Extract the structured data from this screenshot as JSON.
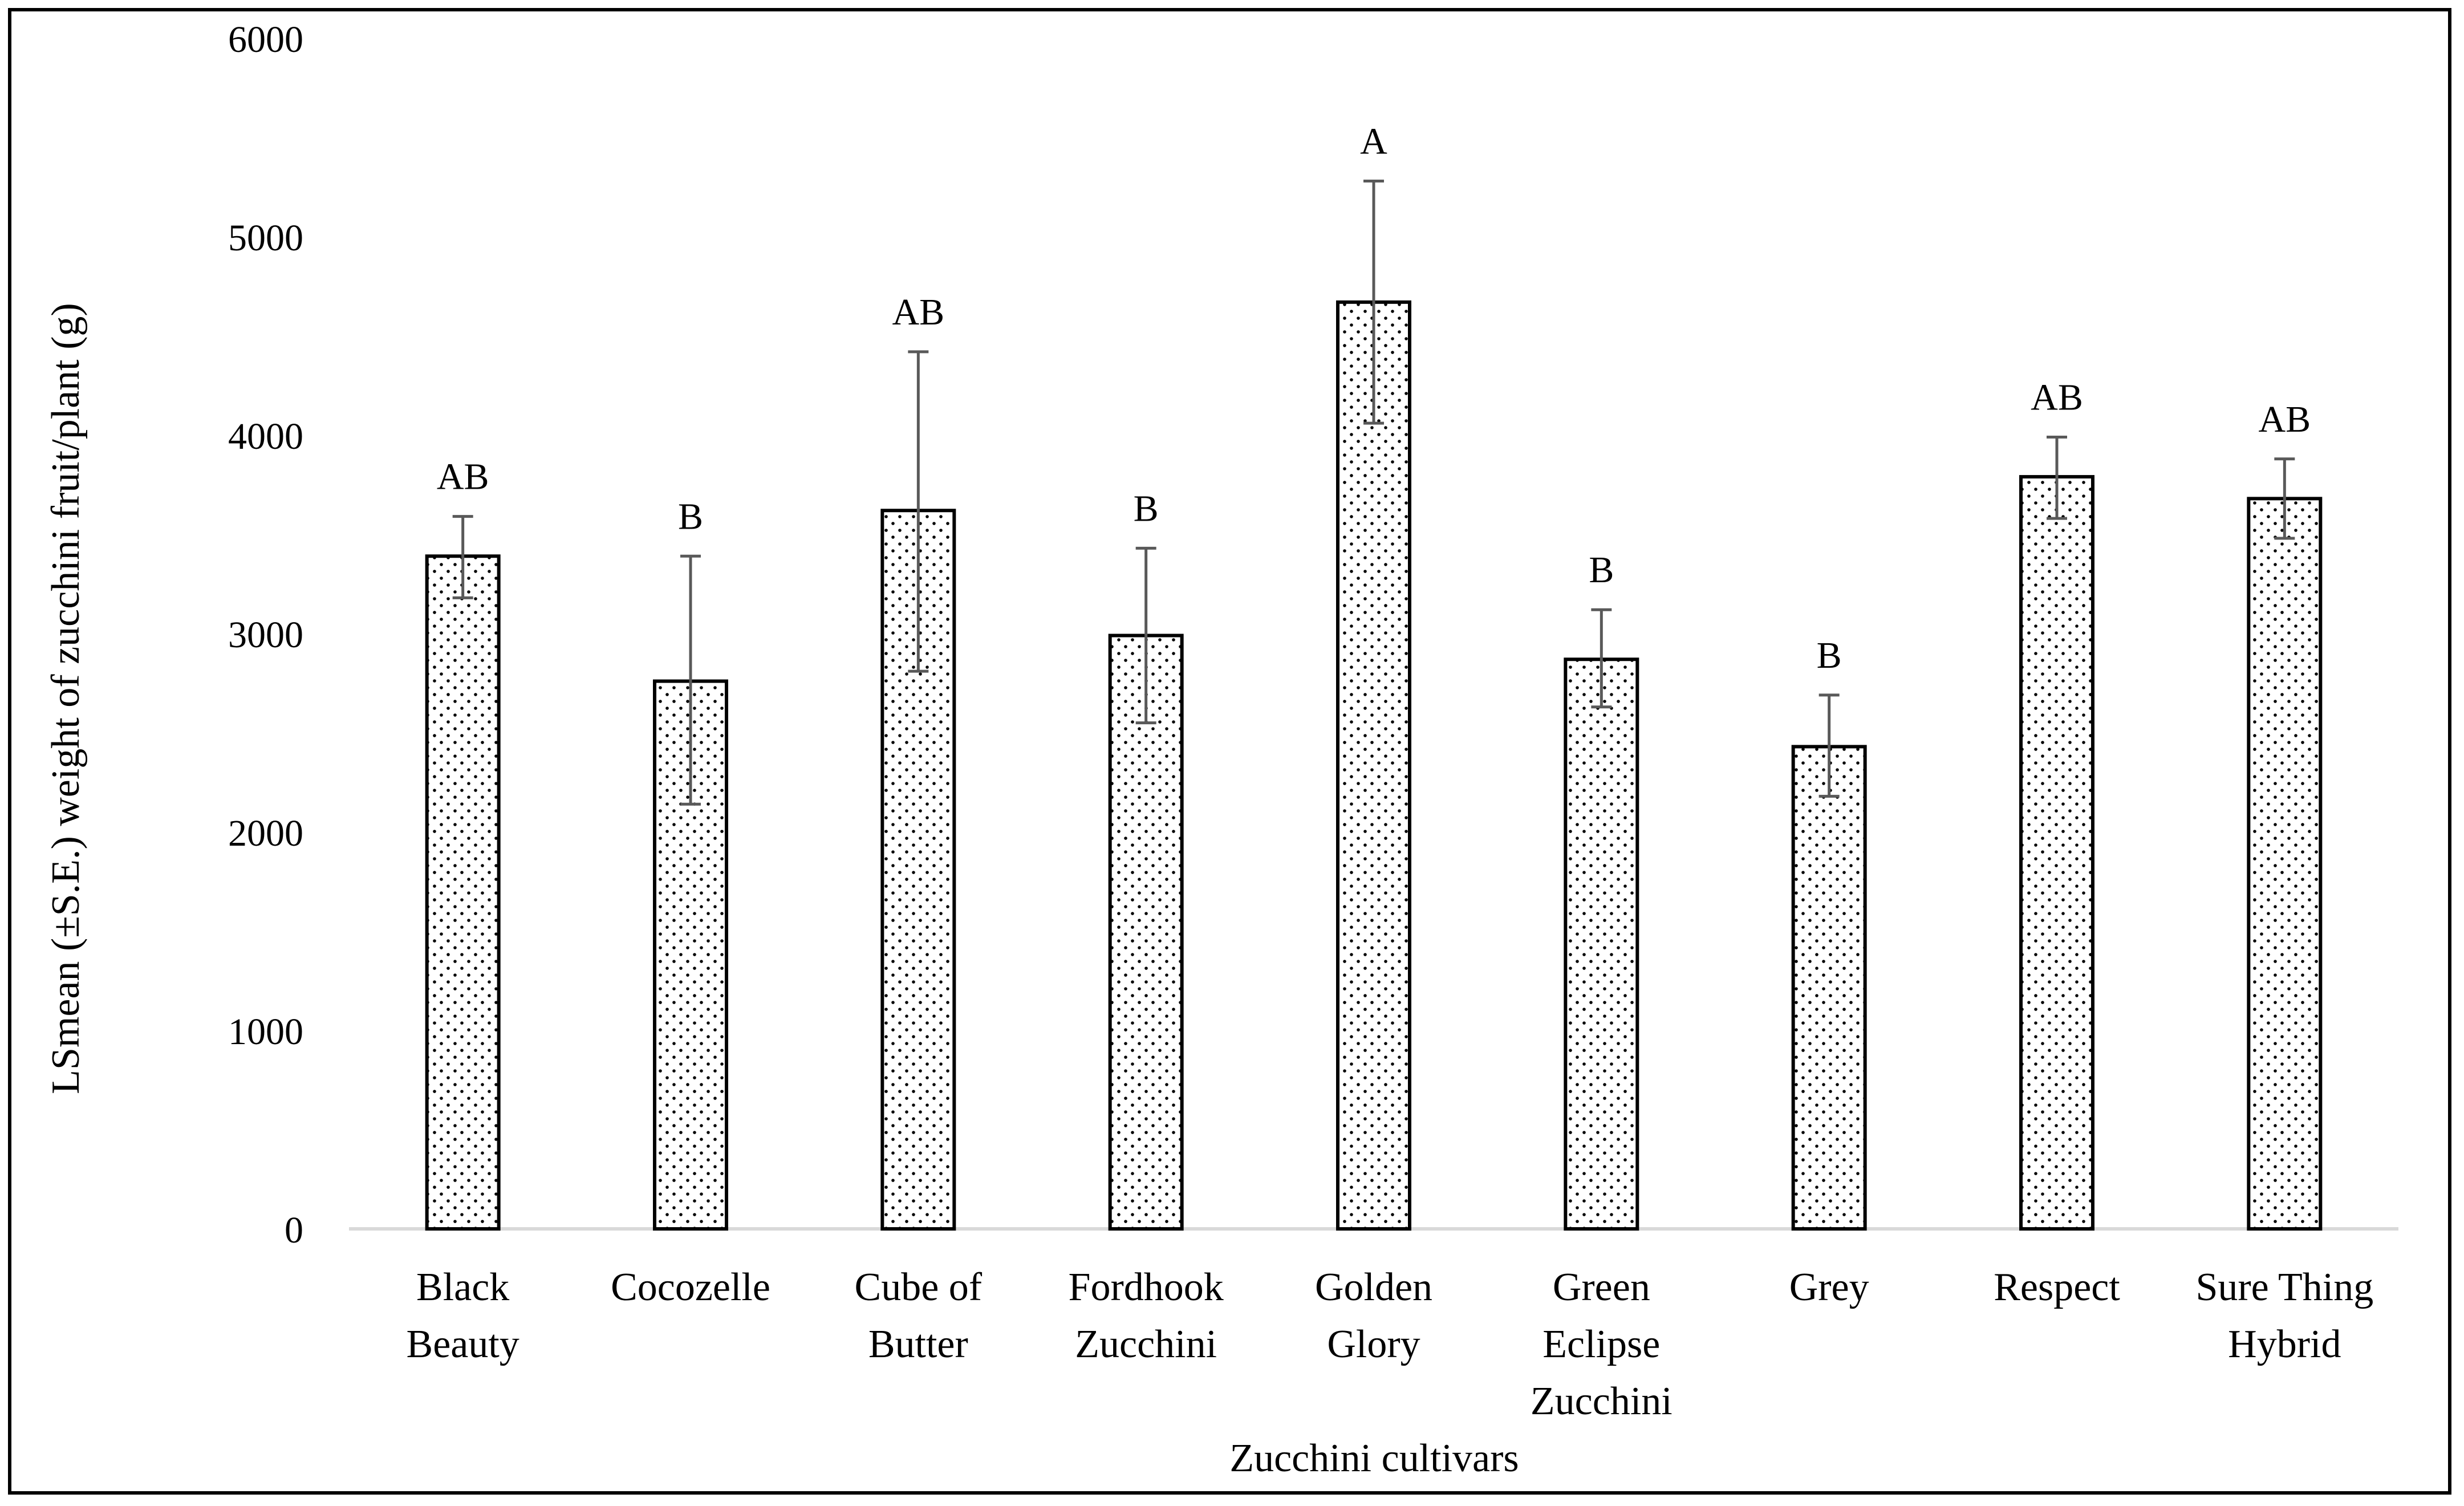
{
  "chart_data": {
    "type": "bar",
    "title": "",
    "xlabel": "Zucchini cultivars",
    "ylabel": "LSmean (±S.E.) weight of zucchini fruit/plant (g)",
    "ylim": [
      0,
      6000
    ],
    "yticks": [
      0,
      1000,
      2000,
      3000,
      4000,
      5000,
      6000
    ],
    "grid": false,
    "legend": "none",
    "bar_fill": "dotted",
    "categories": [
      [
        "Black",
        "Beauty"
      ],
      [
        "Cocozelle"
      ],
      [
        "Cube of",
        "Butter"
      ],
      [
        "Fordhook",
        "Zucchini"
      ],
      [
        "Golden",
        "Glory"
      ],
      [
        "Green",
        "Eclipse",
        "Zucchini"
      ],
      [
        "Grey"
      ],
      [
        "Respect"
      ],
      [
        "Sure Thing",
        "Hybrid"
      ]
    ],
    "values": [
      3390,
      2760,
      3620,
      2990,
      4670,
      2870,
      2430,
      3790,
      3680
    ],
    "error_low": [
      3180,
      2140,
      2810,
      2550,
      4060,
      2630,
      2180,
      3580,
      3480
    ],
    "error_high": [
      3590,
      3390,
      4420,
      3430,
      5280,
      3120,
      2690,
      3990,
      3880
    ],
    "significance_letters": [
      "AB",
      "B",
      "AB",
      "B",
      "A",
      "B",
      "B",
      "AB",
      "AB"
    ],
    "colors": {
      "bar_stroke": "#000000",
      "dot": "#000000",
      "error_bar": "#595959",
      "axis_line": "#d9d9d9",
      "frame": "#000000"
    }
  }
}
